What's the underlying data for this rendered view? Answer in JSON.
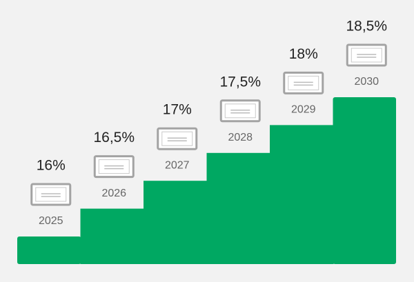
{
  "chart_data": {
    "type": "step",
    "categories": [
      "2025",
      "2026",
      "2027",
      "2028",
      "2029",
      "2030"
    ],
    "values": [
      16,
      16.5,
      17,
      17.5,
      18,
      18.5
    ],
    "value_labels": [
      "16%",
      "16,5%",
      "17%",
      "17,5%",
      "18%",
      "18,5%"
    ],
    "color": "#00a862"
  }
}
